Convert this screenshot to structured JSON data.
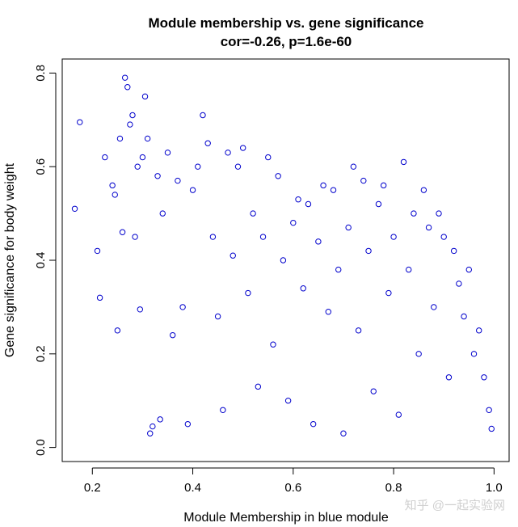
{
  "chart_data": {
    "type": "scatter",
    "title": "Module membership vs. gene significance",
    "subtitle": "cor=-0.26, p=1.6e-60",
    "xlabel": "Module Membership in blue module",
    "ylabel": "Gene significance for body weight",
    "xlim": [
      0.14,
      1.03
    ],
    "ylim": [
      -0.03,
      0.83
    ],
    "xticks": [
      "0.2",
      "0.4",
      "0.6",
      "0.8",
      "1.0"
    ],
    "yticks": [
      "0.0",
      "0.2",
      "0.4",
      "0.6",
      "0.8"
    ],
    "grid": false,
    "legend": "none",
    "marker": "open-circle",
    "point_color": "#0000cc",
    "series": [
      {
        "values_xy": [
          [
            0.165,
            0.51
          ],
          [
            0.175,
            0.695
          ],
          [
            0.21,
            0.42
          ],
          [
            0.215,
            0.32
          ],
          [
            0.225,
            0.62
          ],
          [
            0.24,
            0.56
          ],
          [
            0.245,
            0.54
          ],
          [
            0.25,
            0.25
          ],
          [
            0.255,
            0.66
          ],
          [
            0.26,
            0.46
          ],
          [
            0.265,
            0.79
          ],
          [
            0.27,
            0.77
          ],
          [
            0.275,
            0.69
          ],
          [
            0.28,
            0.71
          ],
          [
            0.285,
            0.45
          ],
          [
            0.29,
            0.6
          ],
          [
            0.295,
            0.295
          ],
          [
            0.3,
            0.62
          ],
          [
            0.305,
            0.75
          ],
          [
            0.31,
            0.66
          ],
          [
            0.315,
            0.03
          ],
          [
            0.32,
            0.045
          ],
          [
            0.33,
            0.58
          ],
          [
            0.335,
            0.06
          ],
          [
            0.34,
            0.5
          ],
          [
            0.35,
            0.63
          ],
          [
            0.36,
            0.24
          ],
          [
            0.37,
            0.57
          ],
          [
            0.38,
            0.3
          ],
          [
            0.39,
            0.05
          ],
          [
            0.4,
            0.55
          ],
          [
            0.41,
            0.6
          ],
          [
            0.42,
            0.71
          ],
          [
            0.43,
            0.65
          ],
          [
            0.44,
            0.45
          ],
          [
            0.45,
            0.28
          ],
          [
            0.46,
            0.08
          ],
          [
            0.47,
            0.63
          ],
          [
            0.48,
            0.41
          ],
          [
            0.49,
            0.6
          ],
          [
            0.5,
            0.64
          ],
          [
            0.51,
            0.33
          ],
          [
            0.52,
            0.5
          ],
          [
            0.53,
            0.13
          ],
          [
            0.54,
            0.45
          ],
          [
            0.55,
            0.62
          ],
          [
            0.56,
            0.22
          ],
          [
            0.57,
            0.58
          ],
          [
            0.58,
            0.4
          ],
          [
            0.59,
            0.1
          ],
          [
            0.6,
            0.48
          ],
          [
            0.61,
            0.53
          ],
          [
            0.62,
            0.34
          ],
          [
            0.63,
            0.52
          ],
          [
            0.64,
            0.05
          ],
          [
            0.65,
            0.44
          ],
          [
            0.66,
            0.56
          ],
          [
            0.67,
            0.29
          ],
          [
            0.68,
            0.55
          ],
          [
            0.69,
            0.38
          ],
          [
            0.7,
            0.03
          ],
          [
            0.71,
            0.47
          ],
          [
            0.72,
            0.6
          ],
          [
            0.73,
            0.25
          ],
          [
            0.74,
            0.57
          ],
          [
            0.75,
            0.42
          ],
          [
            0.76,
            0.12
          ],
          [
            0.77,
            0.52
          ],
          [
            0.78,
            0.56
          ],
          [
            0.79,
            0.33
          ],
          [
            0.8,
            0.45
          ],
          [
            0.81,
            0.07
          ],
          [
            0.82,
            0.61
          ],
          [
            0.83,
            0.38
          ],
          [
            0.84,
            0.5
          ],
          [
            0.85,
            0.2
          ],
          [
            0.86,
            0.55
          ],
          [
            0.87,
            0.47
          ],
          [
            0.88,
            0.3
          ],
          [
            0.89,
            0.5
          ],
          [
            0.9,
            0.45
          ],
          [
            0.91,
            0.15
          ],
          [
            0.92,
            0.42
          ],
          [
            0.93,
            0.35
          ],
          [
            0.94,
            0.28
          ],
          [
            0.95,
            0.38
          ],
          [
            0.96,
            0.2
          ],
          [
            0.97,
            0.25
          ],
          [
            0.98,
            0.15
          ],
          [
            0.99,
            0.08
          ],
          [
            0.995,
            0.04
          ]
        ]
      }
    ]
  },
  "watermark": "知乎 @一起实验网"
}
